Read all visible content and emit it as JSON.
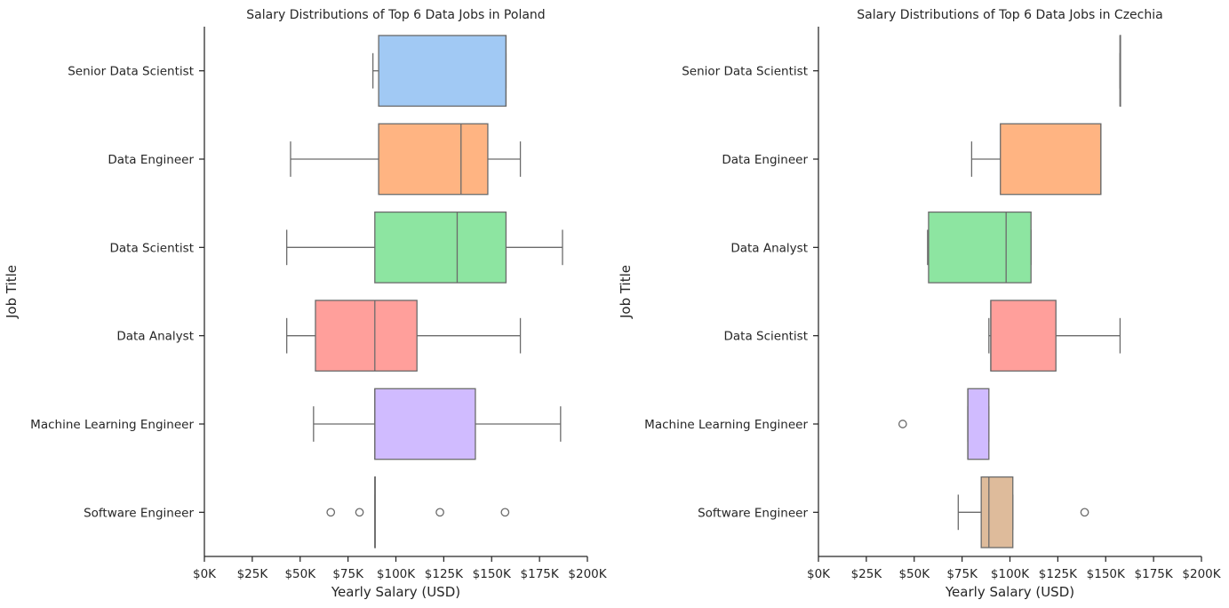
{
  "chart_data": [
    {
      "type": "boxplot",
      "orientation": "horizontal",
      "title": "Salary Distributions of Top 6 Data Jobs in Poland",
      "xlabel": "Yearly Salary (USD)",
      "ylabel": "Job Title",
      "xlim": [
        0,
        200000
      ],
      "xticks": [
        0,
        25000,
        50000,
        75000,
        100000,
        125000,
        150000,
        175000,
        200000
      ],
      "xtick_labels": [
        "$0K",
        "$25K",
        "$50K",
        "$75K",
        "$100K",
        "$125K",
        "$150K",
        "$175K",
        "$200K"
      ],
      "grid": false,
      "categories": [
        {
          "label": "Senior Data Scientist",
          "color": "#a1c9f4",
          "whisker_low": 88000,
          "q1": 91000,
          "median": 157500,
          "q3": 157500,
          "whisker_high": 157500,
          "outliers": []
        },
        {
          "label": "Data Engineer",
          "color": "#ffb482",
          "whisker_low": 45000,
          "q1": 91000,
          "median": 134000,
          "q3": 148000,
          "whisker_high": 165000,
          "outliers": []
        },
        {
          "label": "Data Scientist",
          "color": "#8de5a1",
          "whisker_low": 43000,
          "q1": 89000,
          "median": 132000,
          "q3": 157500,
          "whisker_high": 187000,
          "outliers": []
        },
        {
          "label": "Data Analyst",
          "color": "#ff9f9b",
          "whisker_low": 43000,
          "q1": 58000,
          "median": 89000,
          "q3": 111000,
          "whisker_high": 165000,
          "outliers": []
        },
        {
          "label": "Machine Learning Engineer",
          "color": "#d0bbff",
          "whisker_low": 57000,
          "q1": 89000,
          "median": 89000,
          "q3": 141500,
          "whisker_high": 186000,
          "outliers": []
        },
        {
          "label": "Software Engineer",
          "color": "#debb9b",
          "whisker_low": 89000,
          "q1": 89000,
          "median": 89000,
          "q3": 89000,
          "whisker_high": 89000,
          "outliers": [
            66000,
            81000,
            123000,
            157000
          ]
        }
      ]
    },
    {
      "type": "boxplot",
      "orientation": "horizontal",
      "title": "Salary Distributions of Top 6 Data Jobs in Czechia",
      "xlabel": "Yearly Salary (USD)",
      "ylabel": "Job Title",
      "xlim": [
        0,
        200000
      ],
      "xticks": [
        0,
        25000,
        50000,
        75000,
        100000,
        125000,
        150000,
        175000,
        200000
      ],
      "xtick_labels": [
        "$0K",
        "$25K",
        "$50K",
        "$75K",
        "$100K",
        "$125K",
        "$150K",
        "$175K",
        "$200K"
      ],
      "grid": false,
      "categories": [
        {
          "label": "Senior Data Scientist",
          "color": "#a1c9f4",
          "whisker_low": 157500,
          "q1": 157500,
          "median": 157500,
          "q3": 157500,
          "whisker_high": 157500,
          "outliers": []
        },
        {
          "label": "Data Engineer",
          "color": "#ffb482",
          "whisker_low": 80000,
          "q1": 95000,
          "median": 147500,
          "q3": 147500,
          "whisker_high": 147500,
          "outliers": []
        },
        {
          "label": "Data Analyst",
          "color": "#8de5a1",
          "whisker_low": 57000,
          "q1": 57500,
          "median": 98000,
          "q3": 111000,
          "whisker_high": 111000,
          "outliers": []
        },
        {
          "label": "Data Scientist",
          "color": "#ff9f9b",
          "whisker_low": 89000,
          "q1": 90000,
          "median": 90000,
          "q3": 124000,
          "whisker_high": 157500,
          "outliers": []
        },
        {
          "label": "Machine Learning Engineer",
          "color": "#d0bbff",
          "whisker_low": 78000,
          "q1": 78000,
          "median": 78000,
          "q3": 89000,
          "whisker_high": 89000,
          "outliers": [
            44000
          ]
        },
        {
          "label": "Software Engineer",
          "color": "#debb9b",
          "whisker_low": 73000,
          "q1": 85000,
          "median": 89000,
          "q3": 101500,
          "whisker_high": 101500,
          "outliers": [
            139000
          ]
        }
      ]
    }
  ]
}
